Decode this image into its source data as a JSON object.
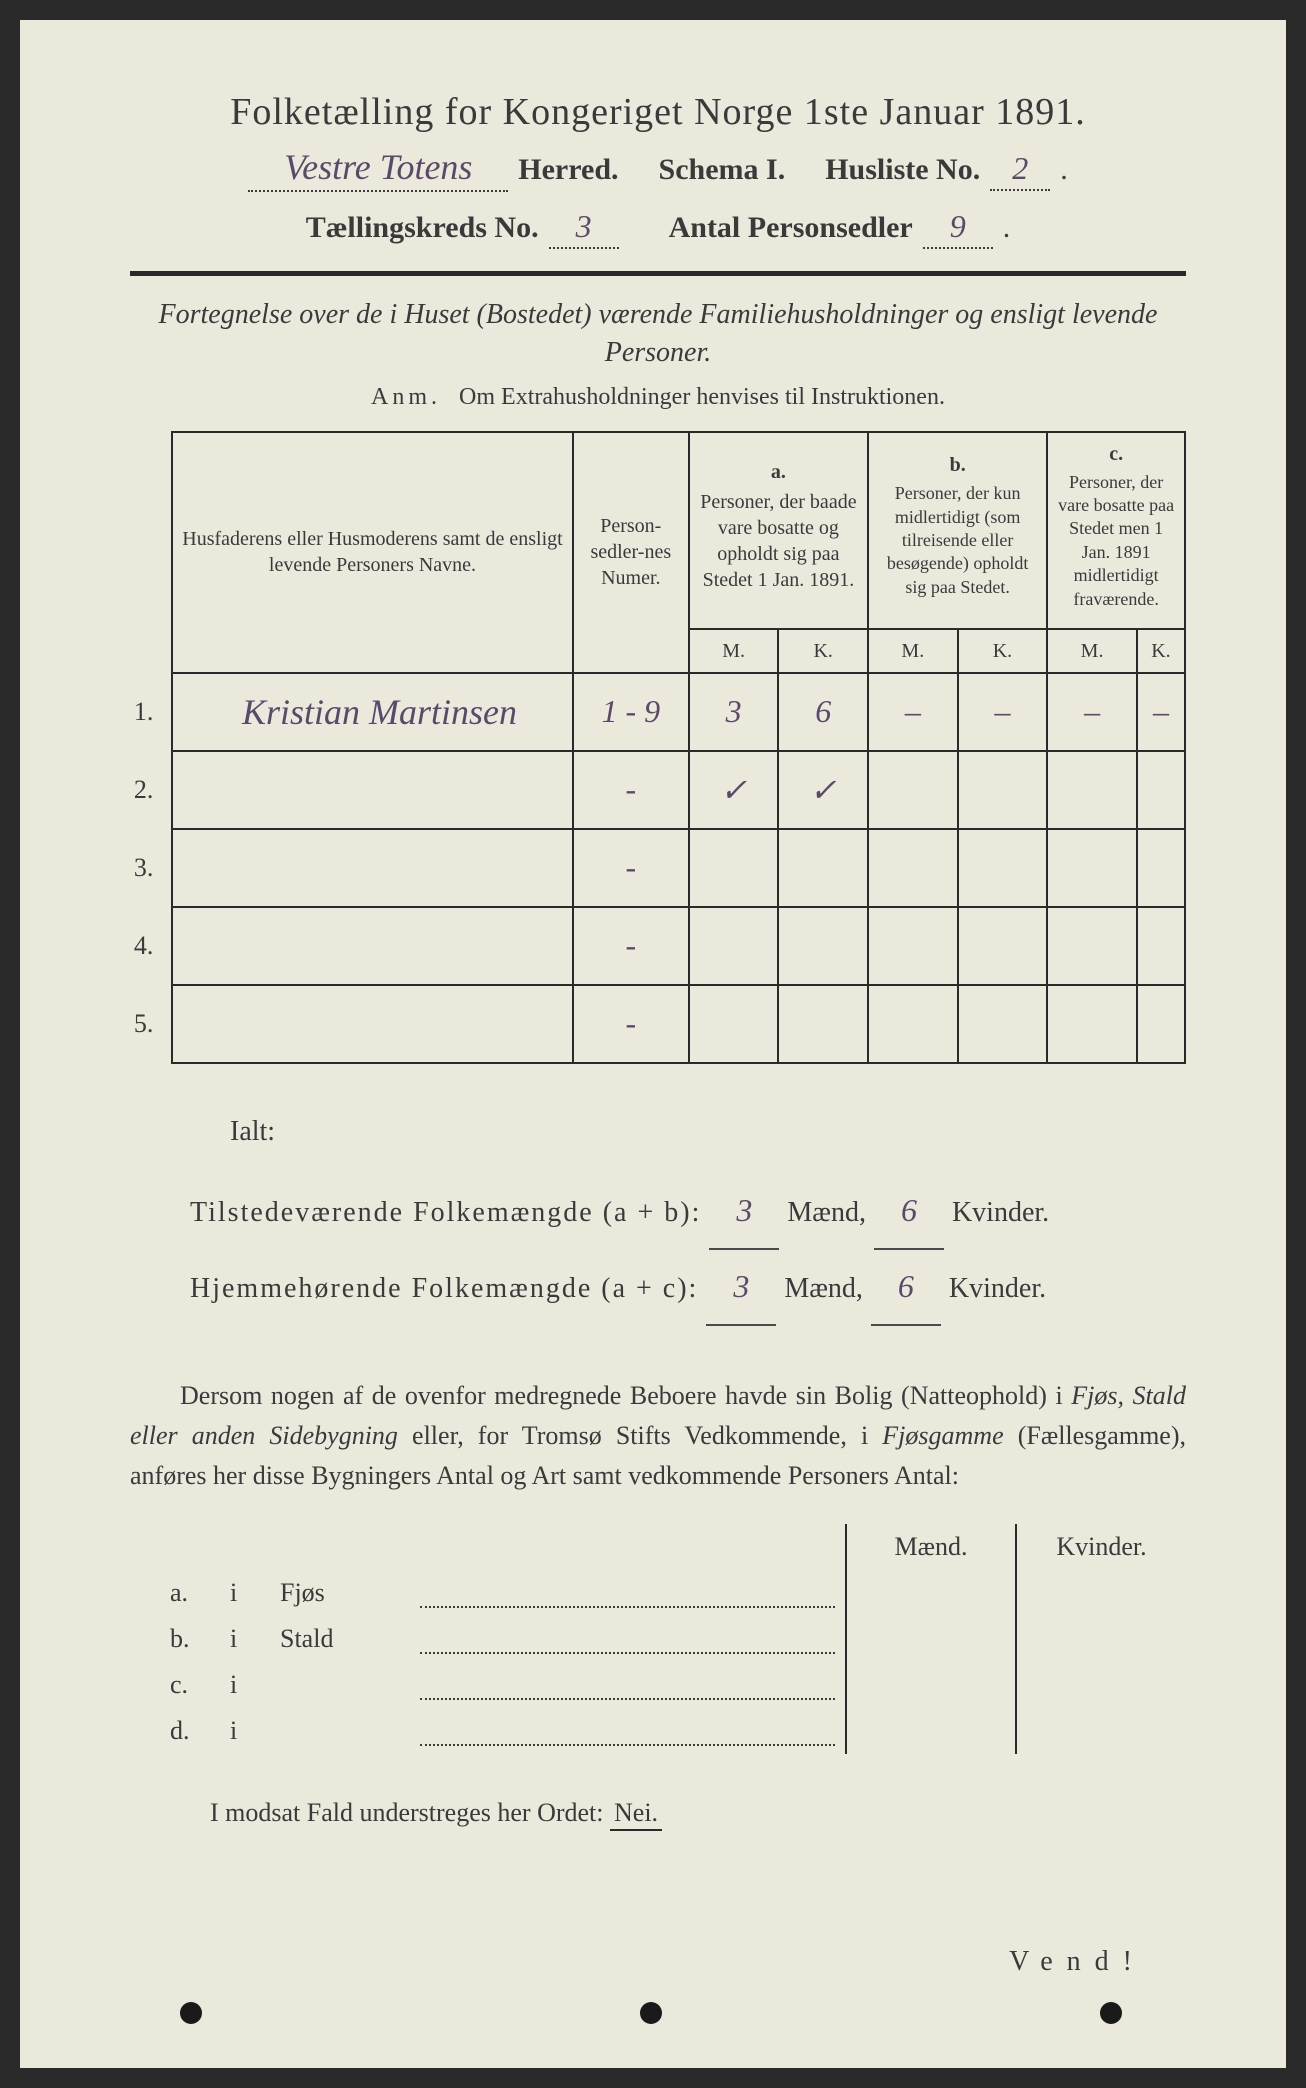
{
  "header": {
    "title": "Folketælling for Kongeriget Norge 1ste Januar 1891.",
    "herred_value": "Vestre Totens",
    "herred_label": "Herred.",
    "schema_label": "Schema I.",
    "husliste_label": "Husliste No.",
    "husliste_value": "2",
    "kreds_label": "Tællingskreds No.",
    "kreds_value": "3",
    "antal_label": "Antal Personsedler",
    "antal_value": "9"
  },
  "subtitle": "Fortegnelse over de i Huset (Bostedet) værende Familiehusholdninger og ensligt levende Personer.",
  "anm": {
    "label": "Anm.",
    "text": "Om Extrahusholdninger henvises til Instruktionen."
  },
  "table": {
    "col_names": "Husfaderens eller Husmoderens samt de ensligt levende Personers Navne.",
    "col_numer": "Person-sedler-nes Numer.",
    "group_a": {
      "letter": "a.",
      "text": "Personer, der baade vare bosatte og opholdt sig paa Stedet 1 Jan. 1891."
    },
    "group_b": {
      "letter": "b.",
      "text": "Personer, der kun midlertidigt (som tilreisende eller besøgende) opholdt sig paa Stedet."
    },
    "group_c": {
      "letter": "c.",
      "text": "Personer, der vare bosatte paa Stedet men 1 Jan. 1891 midlertidigt fraværende."
    },
    "m": "M.",
    "k": "K.",
    "rows": [
      {
        "n": "1.",
        "name": "Kristian Martinsen",
        "num": "1 - 9",
        "a_m": "3",
        "a_k": "6",
        "b_m": "–",
        "b_k": "–",
        "c_m": "–",
        "c_k": "–"
      },
      {
        "n": "2.",
        "name": "",
        "num": "-",
        "a_m": "✓",
        "a_k": "✓",
        "b_m": "",
        "b_k": "",
        "c_m": "",
        "c_k": ""
      },
      {
        "n": "3.",
        "name": "",
        "num": "-",
        "a_m": "",
        "a_k": "",
        "b_m": "",
        "b_k": "",
        "c_m": "",
        "c_k": ""
      },
      {
        "n": "4.",
        "name": "",
        "num": "-",
        "a_m": "",
        "a_k": "",
        "b_m": "",
        "b_k": "",
        "c_m": "",
        "c_k": ""
      },
      {
        "n": "5.",
        "name": "",
        "num": "-",
        "a_m": "",
        "a_k": "",
        "b_m": "",
        "b_k": "",
        "c_m": "",
        "c_k": ""
      }
    ]
  },
  "totals": {
    "ialt": "Ialt:",
    "line1_label": "Tilstedeværende Folkemængde (a + b):",
    "line2_label": "Hjemmehørende Folkemængde (a + c):",
    "maend": "Mænd,",
    "kvinder": "Kvinder.",
    "l1_m": "3",
    "l1_k": "6",
    "l2_m": "3",
    "l2_k": "6"
  },
  "para": "Dersom nogen af de ovenfor medregnede Beboere havde sin Bolig (Natteophold) i Fjøs, Stald eller anden Sidebygning eller, for Tromsø Stifts Vedkommende, i Fjøsgamme (Fællesgamme), anføres her disse Bygningers Antal og Art samt vedkommende Personers Antal:",
  "outbuild": {
    "head_m": "Mænd.",
    "head_k": "Kvinder.",
    "rows": [
      {
        "letter": "a.",
        "i": "i",
        "label": "Fjøs"
      },
      {
        "letter": "b.",
        "i": "i",
        "label": "Stald"
      },
      {
        "letter": "c.",
        "i": "i",
        "label": ""
      },
      {
        "letter": "d.",
        "i": "i",
        "label": ""
      }
    ]
  },
  "nei": {
    "text": "I modsat Fald understreges her Ordet:",
    "word": "Nei."
  },
  "vend": "Vend!",
  "colors": {
    "paper": "#ebe8dc",
    "ink": "#3a3a3a",
    "handwriting": "#5a4a6a",
    "rule": "#2a2a2a"
  }
}
